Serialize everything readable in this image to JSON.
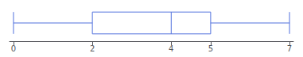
{
  "chart_data": {
    "type": "boxplot",
    "orientation": "horizontal",
    "whisker_low": 0,
    "q1": 2,
    "median": 4,
    "q3": 5,
    "whisker_high": 7,
    "xlim": [
      -0.1,
      7.1
    ],
    "xticks": [
      0,
      2,
      4,
      5,
      7
    ],
    "grid": false,
    "tick_labels": "x"
  }
}
